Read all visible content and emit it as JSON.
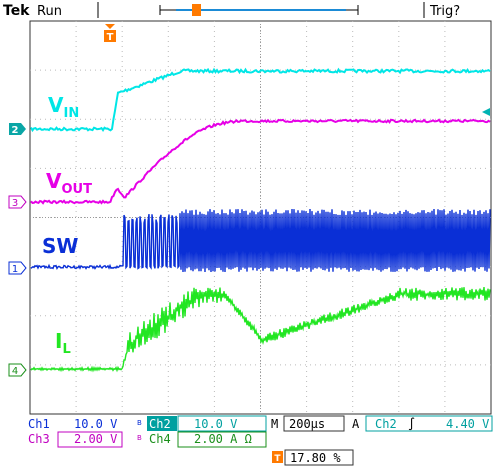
{
  "header": {
    "brand": "Tek",
    "state": "Run",
    "trigger_status": "Trig?"
  },
  "traces": [
    {
      "id": "vin",
      "label_main": "V",
      "label_sub": "IN",
      "channel": "2",
      "color": "#00e6e6"
    },
    {
      "id": "vout",
      "label_main": "V",
      "label_sub": "OUT",
      "channel": "3",
      "color": "#e600e6"
    },
    {
      "id": "sw",
      "label_main": "SW",
      "label_sub": "",
      "channel": "1",
      "color": "#0a2fd6"
    },
    {
      "id": "il",
      "label_main": "I",
      "label_sub": "L",
      "channel": "4",
      "color": "#22e622"
    }
  ],
  "trigger_marker": "T",
  "readout": {
    "ch1_name": "Ch1",
    "ch1_scale": "10.0 V",
    "ch2_name": "Ch2",
    "ch2_scale": "10.0 V",
    "ch3_name": "Ch3",
    "ch3_scale": "2.00 V",
    "ch4_name": "Ch4",
    "ch4_scale": "2.00 A Ω",
    "bw_symbol": "B",
    "timebase_prefix": "M",
    "timebase": "200µs",
    "trig_mode": "A",
    "trig_source": "Ch2",
    "trig_slope": "∫",
    "trig_level": "4.40 V",
    "trig_position": "17.80 %"
  },
  "colors": {
    "ch1": "#0a2fd6",
    "ch2": "#00b3b3",
    "ch3": "#c000c0",
    "ch4": "#1a8f1a",
    "trigger": "#ff7a00"
  }
}
